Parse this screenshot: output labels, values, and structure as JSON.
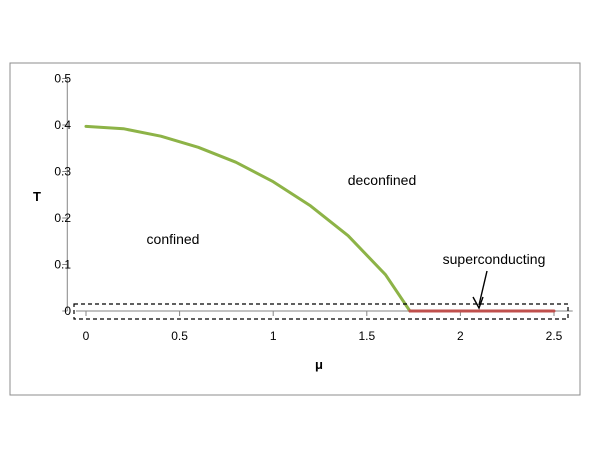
{
  "chart_data": {
    "type": "line",
    "xlabel": "μ",
    "ylabel": "T",
    "xlim": [
      -0.1,
      2.6
    ],
    "ylim": [
      0,
      0.5
    ],
    "x_ticks": [
      "0",
      "0.5",
      "1",
      "1.5",
      "2",
      "2.5"
    ],
    "y_ticks": [
      "0",
      "0.1",
      "0.2",
      "0.3",
      "0.4",
      "0.5"
    ],
    "grid": false,
    "series": [
      {
        "color": "#8db347",
        "x": [
          0,
          0.2,
          0.4,
          0.6,
          0.8,
          1.0,
          1.2,
          1.4,
          1.6,
          1.73
        ],
        "y": [
          0.397,
          0.392,
          0.376,
          0.352,
          0.32,
          0.278,
          0.226,
          0.162,
          0.078,
          0
        ]
      },
      {
        "color": "#c0504d",
        "x": [
          1.73,
          2.5
        ],
        "y": [
          0,
          0
        ]
      }
    ],
    "annotations": [
      {
        "text": "confined",
        "x": 0.47,
        "y": 0.155
      },
      {
        "text": "deconfined",
        "x": 1.58,
        "y": 0.275
      },
      {
        "text": "superconducting",
        "x": 2.1,
        "y": 0.105,
        "arrow_to": [
          2.1,
          0
        ]
      }
    ]
  }
}
